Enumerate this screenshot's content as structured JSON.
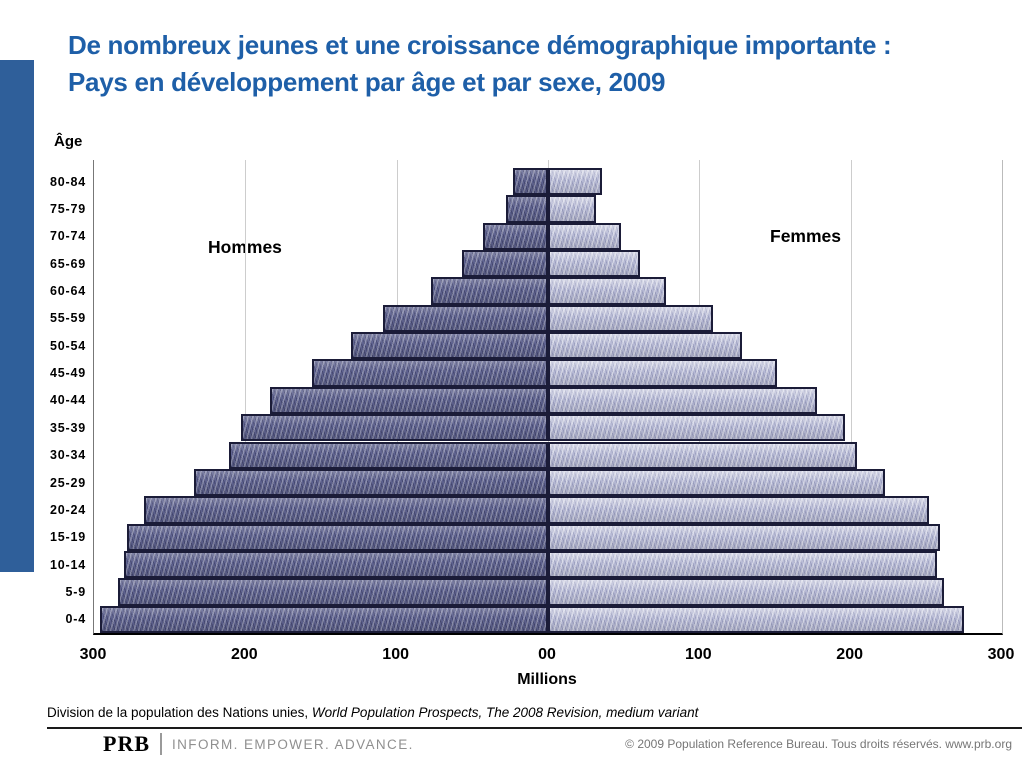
{
  "slide": {
    "title_line1": "De nombreux jeunes et une croissance démographique importante :",
    "title_line2": "Pays en développement par âge et par sexe, 2009",
    "title_color": "#1e5fa8",
    "accent_bar_color": "#2f5f9a"
  },
  "chart_data": {
    "type": "bar",
    "subtype": "population-pyramid",
    "title": "Pays en développement par âge et par sexe, 2009",
    "y_axis_title": "Âge",
    "x_axis_title": "Millions",
    "units": "millions",
    "grid": true,
    "x_max_each_side": 300,
    "x_tick_labels": [
      "300",
      "200",
      "100",
      "00",
      "100",
      "200",
      "300"
    ],
    "categories_top_to_bottom": [
      "80-84",
      "75-79",
      "70-74",
      "65-69",
      "60-64",
      "55-59",
      "50-54",
      "45-49",
      "40-44",
      "35-39",
      "30-34",
      "25-29",
      "20-24",
      "15-19",
      "10-14",
      "5-9",
      "0-4"
    ],
    "series": [
      {
        "name": "Hommes",
        "side": "left",
        "color": "#5f6390",
        "values_top_to_bottom": [
          23,
          28,
          43,
          57,
          77,
          109,
          130,
          156,
          184,
          203,
          211,
          234,
          267,
          278,
          280,
          284,
          296
        ]
      },
      {
        "name": "Femmes",
        "side": "right",
        "color": "#b6b9d5",
        "values_top_to_bottom": [
          36,
          32,
          48,
          61,
          78,
          109,
          128,
          151,
          178,
          196,
          204,
          223,
          252,
          259,
          257,
          262,
          275
        ]
      }
    ],
    "bar_border_color": "#1b1c38",
    "gridline_color": "#cdcdcd"
  },
  "footer": {
    "source_regular": "Division de la population des Nations unies, ",
    "source_italic": "World Population Prospects, The 2008 Revision, medium variant",
    "logo_text": "PRB",
    "logo_tagline": "INFORM. EMPOWER. ADVANCE.",
    "copyright": "© 2009 Population Reference Bureau. Tous droits réservés. www.prb.org"
  }
}
